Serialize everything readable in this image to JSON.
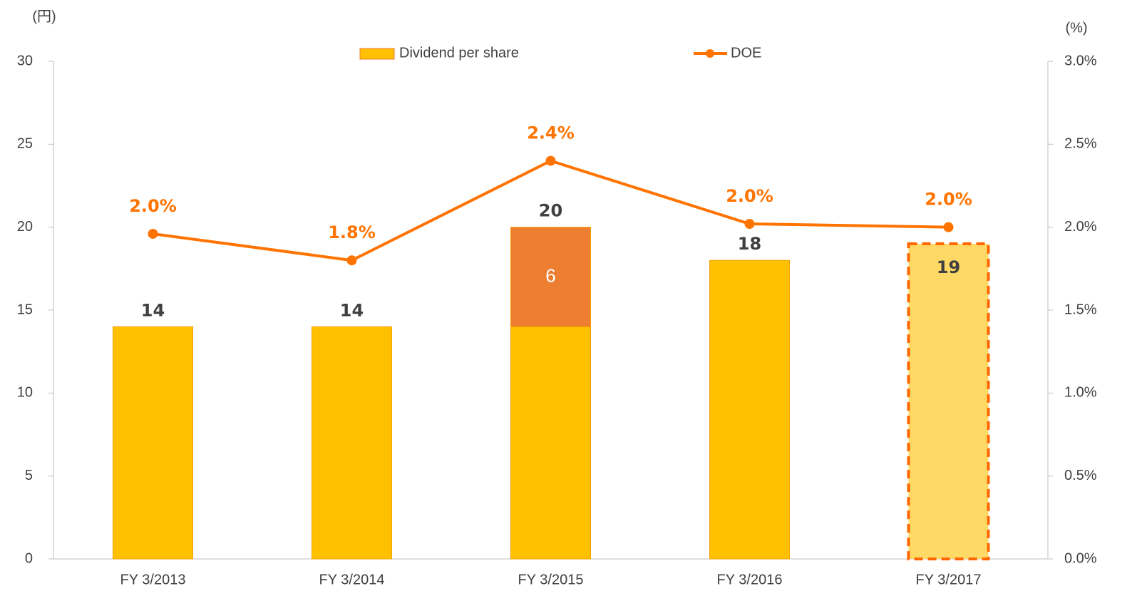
{
  "chart_data": {
    "type": "bar_line",
    "y_unit": "(円)",
    "y2_unit": "(%)",
    "categories": [
      "FY 3/2013",
      "FY 3/2014",
      "FY 3/2015",
      "FY 3/2016",
      "FY 3/2017"
    ],
    "series": [
      {
        "name": "Dividend per share",
        "type": "bar",
        "color": "#ffc000",
        "values": [
          14,
          14,
          14,
          18,
          19
        ]
      },
      {
        "type": "bar",
        "color": "#ed7d31",
        "values": [
          null,
          null,
          6,
          null,
          null
        ]
      },
      {
        "name": "DOE",
        "type": "line",
        "axis": "y2",
        "color": "#ff7300",
        "values": [
          1.96,
          1.8,
          2.4,
          2.02,
          2.0
        ],
        "value_labels": [
          "2.0%",
          "1.8%",
          "2.4%",
          "2.0%",
          "2.0%"
        ]
      }
    ],
    "totals": [
      14,
      14,
      20,
      18,
      19
    ],
    "forecast_color": "#ffd966",
    "dashed": [
      false,
      false,
      false,
      false,
      true
    ],
    "ylim": [
      0,
      30
    ],
    "yticks": [
      0,
      5,
      10,
      15,
      20,
      25,
      30
    ],
    "y2lim": [
      0,
      3
    ],
    "y2ticks": [
      {
        "value": 0,
        "label": "0.0%"
      },
      {
        "value": 0.5,
        "label": "0.5%"
      },
      {
        "value": 1,
        "label": "1.0%"
      },
      {
        "value": 1.5,
        "label": "1.5%"
      },
      {
        "value": 2,
        "label": "2.0%"
      },
      {
        "value": 2.5,
        "label": "2.5%"
      },
      {
        "value": 3,
        "label": "3.0%"
      }
    ]
  }
}
